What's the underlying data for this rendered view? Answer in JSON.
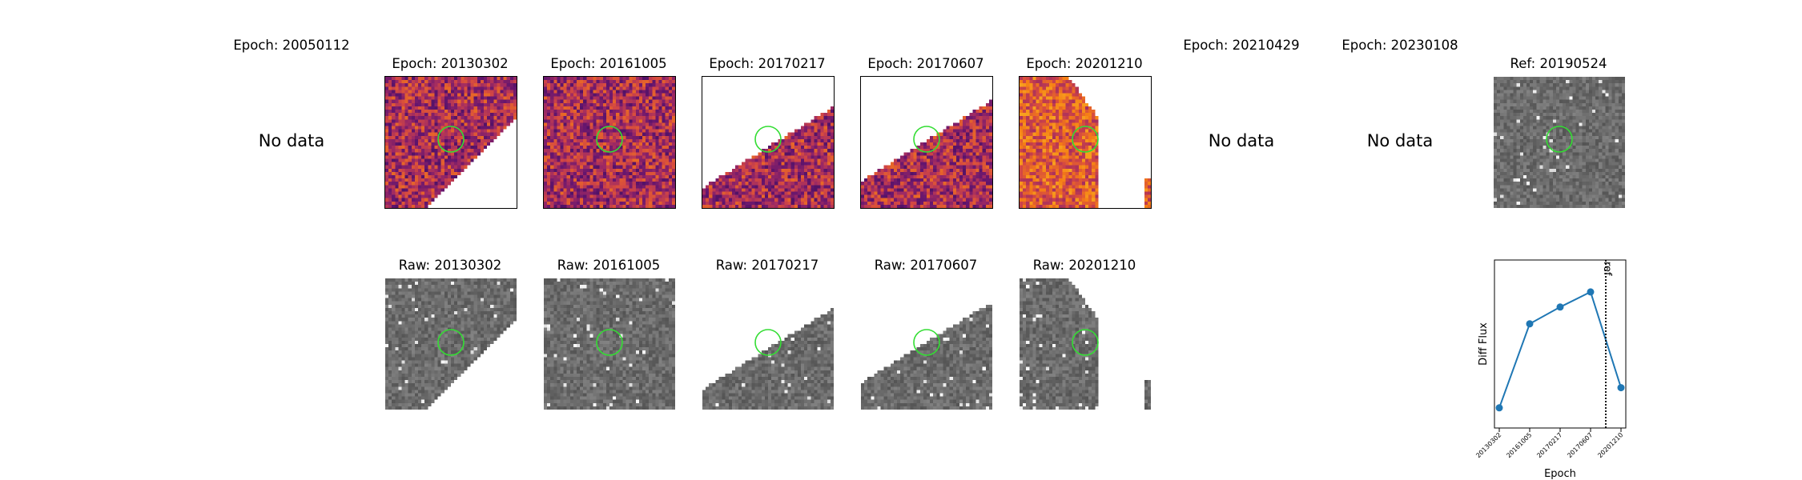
{
  "epoch_titles": [
    "Epoch: 20050112",
    "Epoch: 20130302",
    "Epoch: 20161005",
    "Epoch: 20170217",
    "Epoch: 20170607",
    "Epoch: 20201210",
    "Epoch: 20210429",
    "Epoch: 20230108"
  ],
  "ref_title": "Ref: 20190524",
  "no_data_label": "No data",
  "raw_titles": [
    "Raw: 20130302",
    "Raw: 20161005",
    "Raw: 20170217",
    "Raw: 20170607",
    "Raw: 20201210"
  ],
  "colors": {
    "circle": "#33dd33",
    "line": "#1f77b4",
    "hot_low": "#2a0e5a",
    "hot_high": "#fca86a"
  },
  "chart_data": {
    "type": "line",
    "x": [
      "20130302",
      "20161005",
      "20170217",
      "20170607",
      "20201210"
    ],
    "values": [
      0.12,
      0.62,
      0.72,
      0.81,
      0.24
    ],
    "xlabel": "Epoch",
    "ylabel": "Diff Flux",
    "ylim": [
      0.0,
      1.0
    ],
    "ref_line": {
      "after_index": 3.5,
      "label": "ref"
    },
    "grid": false
  }
}
